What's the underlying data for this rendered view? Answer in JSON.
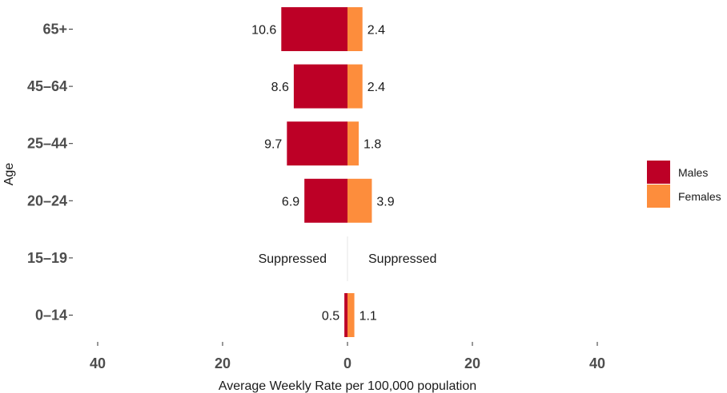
{
  "chart_data": {
    "type": "bar",
    "orientation": "horizontal",
    "diverging": true,
    "categories": [
      "0–14",
      "15–19",
      "20–24",
      "25–44",
      "45–64",
      "65+"
    ],
    "series": [
      {
        "name": "Males",
        "values": [
          0.5,
          null,
          6.9,
          9.7,
          8.6,
          10.6
        ],
        "labels": [
          "0.5",
          "Suppressed",
          "6.9",
          "9.7",
          "8.6",
          "10.6"
        ],
        "color": "#BD0026",
        "side": "left"
      },
      {
        "name": "Females",
        "values": [
          1.1,
          null,
          3.9,
          1.8,
          2.4,
          2.4
        ],
        "labels": [
          "1.1",
          "Suppressed",
          "3.9",
          "1.8",
          "2.4",
          "2.4"
        ],
        "color": "#FD8D3C",
        "side": "right"
      }
    ],
    "xlabel": "Average Weekly Rate per 100,000 population",
    "ylabel": "Age",
    "xlim": [
      -40,
      40
    ],
    "xticks": [
      -40,
      -20,
      0,
      20,
      40
    ],
    "xtick_labels": [
      "40",
      "20",
      "0",
      "20",
      "40"
    ],
    "legend_position": "right",
    "grid": false
  }
}
